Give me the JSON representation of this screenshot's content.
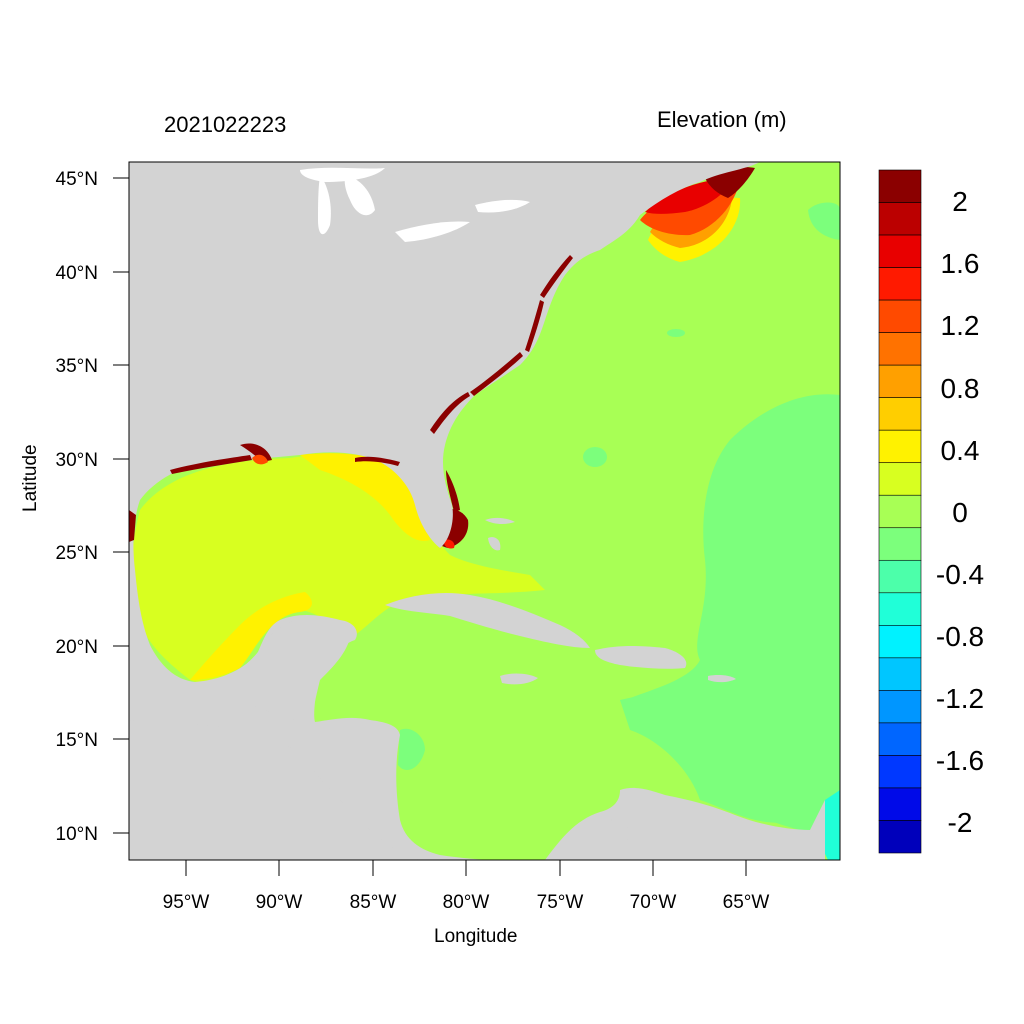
{
  "map": {
    "date_label": "2021022223",
    "variable_label": "Elevation (m)",
    "xlabel": "Longitude",
    "ylabel": "Latitude",
    "x_ticks": [
      "95°W",
      "90°W",
      "85°W",
      "80°W",
      "75°W",
      "70°W",
      "65°W"
    ],
    "x_tick_values": [
      -95,
      -90,
      -85,
      -80,
      -75,
      -70,
      -65
    ],
    "y_ticks": [
      "45°N",
      "40°N",
      "35°N",
      "30°N",
      "25°N",
      "20°N",
      "15°N",
      "10°N"
    ],
    "y_tick_values": [
      45,
      40,
      35,
      30,
      25,
      20,
      15,
      10
    ],
    "lon_range": [
      -98,
      -60
    ],
    "lat_range": [
      8.5,
      46
    ],
    "land_color": "#d3d3d3"
  },
  "colorbar": {
    "labels": [
      "2",
      "1.6",
      "1.2",
      "0.8",
      "0.4",
      "0",
      "-0.4",
      "-0.8",
      "-1.2",
      "-1.6",
      "-2"
    ],
    "colors": [
      "#8b0000",
      "#bb0000",
      "#e80000",
      "#ff1a00",
      "#ff4a00",
      "#ff7200",
      "#ffa000",
      "#ffce00",
      "#fff200",
      "#d8ff20",
      "#a8ff55",
      "#7cff7c",
      "#4cffaa",
      "#20ffd8",
      "#00f2ff",
      "#00c6ff",
      "#0096ff",
      "#0066ff",
      "#0038ff",
      "#000ae8",
      "#0000bb"
    ]
  }
}
